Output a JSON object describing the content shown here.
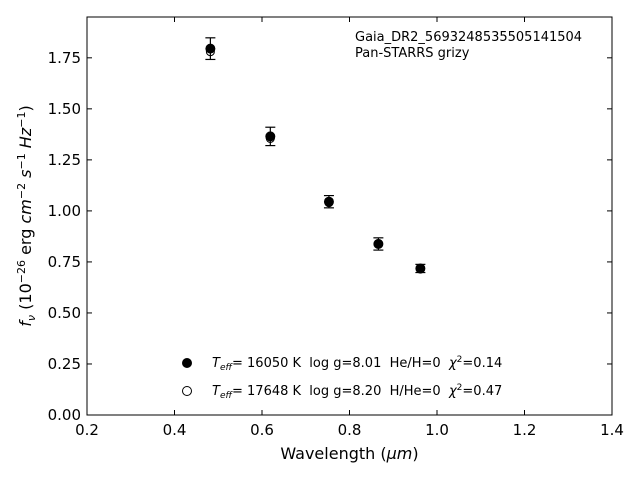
{
  "chart_data": {
    "type": "scatter",
    "xlabel_main": "Wavelength (",
    "xlabel_unit": "μm",
    "xlabel_close": ")",
    "ylabel_parts": {
      "f": "f",
      "nu": "ν",
      "open": " (10",
      "exp_neg26": "−26",
      "erg": " erg ",
      "cm": "cm",
      "exp_neg2": "−2",
      "s": " s",
      "exp_neg1a": "−1",
      "hz": " Hz",
      "exp_neg1b": "−1",
      "close": ")"
    },
    "xlim": [
      0.2,
      1.4
    ],
    "ylim": [
      0.0,
      1.95
    ],
    "xticks": [
      "0.2",
      "0.4",
      "0.6",
      "0.8",
      "1.0",
      "1.2",
      "1.4"
    ],
    "yticks": [
      "0.00",
      "0.25",
      "0.50",
      "0.75",
      "1.00",
      "1.25",
      "1.50",
      "1.75"
    ],
    "grid": false,
    "annotation": {
      "line1": "Gaia_DR2_5693248535505141504",
      "line2": "Pan-STARRS grizy"
    },
    "series": [
      {
        "marker": "filled-circle",
        "x": [
          0.482,
          0.619,
          0.753,
          0.866,
          0.962
        ],
        "y": [
          1.795,
          1.365,
          1.045,
          0.838,
          0.718
        ],
        "yerr": [
          0.053,
          0.045,
          0.03,
          0.03,
          0.02
        ]
      },
      {
        "marker": "open-circle",
        "x": [
          0.482,
          0.619,
          0.753,
          0.866,
          0.962
        ],
        "y": [
          1.78,
          1.355,
          1.04,
          0.84,
          0.715
        ]
      }
    ],
    "legend": [
      {
        "marker": "filled-circle",
        "T": "T",
        "eff": "eff",
        "text": "= 16050 K  log g=8.01  He/H=0  ",
        "chi": "χ",
        "chi_exp": "2",
        "chi_val": "=0.14"
      },
      {
        "marker": "open-circle",
        "T": "T",
        "eff": "eff",
        "text": "= 17648 K  log g=8.20  H/He=0  ",
        "chi": "χ",
        "chi_exp": "2",
        "chi_val": "=0.47"
      }
    ],
    "colors": {
      "marker": "#000000",
      "background": "#ffffff"
    }
  }
}
